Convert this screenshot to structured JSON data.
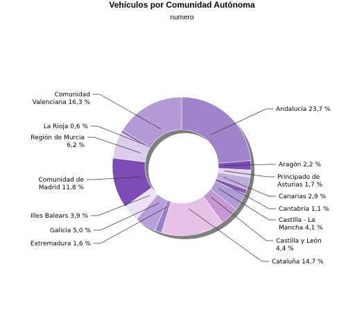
{
  "chart_data": {
    "type": "pie",
    "title": "Vehículos por Comunidad Autónoma",
    "subtitle": "numero",
    "slices": [
      {
        "label": "Andalucía 23,7 %",
        "value": 23.7,
        "color": "#a083cb"
      },
      {
        "label": "Aragón 2,2 %",
        "value": 2.2,
        "color": "#7a4eb4"
      },
      {
        "label": "Principado de Asturias 1,7 %",
        "value": 1.7,
        "color": "#e3d2ef"
      },
      {
        "label": "Canarias 2,9 %",
        "value": 2.9,
        "color": "#c1addd"
      },
      {
        "label": "Cantabria 1,1 %",
        "value": 1.1,
        "color": "#8a5cb8"
      },
      {
        "label": "Castilla - La Mancha 4,1 %",
        "value": 4.1,
        "color": "#b19bd6"
      },
      {
        "label": "Castilla y León 4,4 %",
        "value": 4.4,
        "color": "#c797d3"
      },
      {
        "label": "Cataluña 14,7 %",
        "value": 14.7,
        "color": "#e5c2e6"
      },
      {
        "label": "Extremadura 1,6 %",
        "value": 1.6,
        "color": "#9d7fc6"
      },
      {
        "label": "Galicia 5,0 %",
        "value": 5.0,
        "color": "#b59ed9"
      },
      {
        "label": "Illes Balears 3,9 %",
        "value": 3.9,
        "color": "#ece0f3"
      },
      {
        "label": "Comunidad de Madrid 11,8 %",
        "value": 11.8,
        "color": "#7d4db5"
      },
      {
        "label": "Región de Murcia 6,2 %",
        "value": 6.2,
        "color": "#dccbeb"
      },
      {
        "label": "La Rioja 0,6 %",
        "value": 0.6,
        "color": "#8e6bbf"
      },
      {
        "label": "Comunidad Valenciana 16,3 %",
        "value": 16.3,
        "color": "#b49bd6"
      }
    ]
  }
}
